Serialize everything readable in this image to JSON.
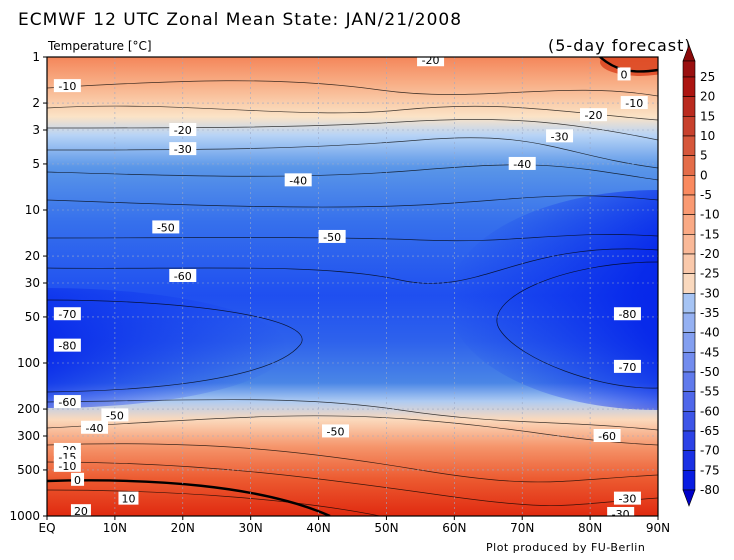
{
  "title": "ECMWF 12 UTC Zonal Mean State: JAN/21/2008",
  "forecast_note": "(5-day forecast)",
  "credit": "Plot produced by FU-Berlin",
  "chart_data": {
    "type": "contour",
    "variable_label": "Temperature [°C]",
    "x_axis": {
      "ticks": [
        0,
        10,
        20,
        30,
        40,
        50,
        60,
        70,
        80,
        90
      ],
      "tick_labels": [
        "EQ",
        "10N",
        "20N",
        "30N",
        "40N",
        "50N",
        "60N",
        "70N",
        "80N",
        "90N"
      ],
      "range": [
        0,
        90
      ]
    },
    "y_axis": {
      "scale": "log",
      "reversed": true,
      "range": [
        1,
        1000
      ],
      "ticks": [
        1,
        2,
        3,
        5,
        10,
        20,
        30,
        50,
        100,
        200,
        300,
        500,
        1000
      ],
      "tick_labels": [
        "1",
        "2",
        "3",
        "5",
        "10",
        "20",
        "30",
        "50",
        "100",
        "200",
        "300",
        "500",
        "1000"
      ]
    },
    "grid": true,
    "colorbar": {
      "levels": [
        25,
        20,
        15,
        10,
        5,
        0,
        -5,
        -10,
        -15,
        -20,
        -25,
        -30,
        -35,
        -40,
        -45,
        -50,
        -55,
        -60,
        -65,
        -70,
        -75,
        -80
      ],
      "labels": [
        "25",
        "20",
        "15",
        "10",
        "5",
        "0",
        "-5",
        "-10",
        "-15",
        "-20",
        "-25",
        "-30",
        "-35",
        "-40",
        "-45",
        "-50",
        "-55",
        "-60",
        "-65",
        "-70",
        "-75",
        "-80"
      ]
    },
    "contour_labels": [
      {
        "text": "-10",
        "lat": 3,
        "p": 1.55
      },
      {
        "text": "-20",
        "lat": 56.5,
        "p": 1.05
      },
      {
        "text": "0",
        "lat": 85,
        "p": 1.3
      },
      {
        "text": "-10",
        "lat": 86.5,
        "p": 2.0
      },
      {
        "text": "-20",
        "lat": 80.5,
        "p": 2.4
      },
      {
        "text": "-30",
        "lat": 75.5,
        "p": 3.3
      },
      {
        "text": "-20",
        "lat": 20,
        "p": 3.0
      },
      {
        "text": "-30",
        "lat": 20,
        "p": 4.0
      },
      {
        "text": "-40",
        "lat": 70,
        "p": 5.0
      },
      {
        "text": "-40",
        "lat": 37,
        "p": 6.4
      },
      {
        "text": "-50",
        "lat": 17.5,
        "p": 13
      },
      {
        "text": "-50",
        "lat": 42,
        "p": 15
      },
      {
        "text": "-60",
        "lat": 20,
        "p": 27
      },
      {
        "text": "-70",
        "lat": 3,
        "p": 48
      },
      {
        "text": "-80",
        "lat": 85.5,
        "p": 48
      },
      {
        "text": "-80",
        "lat": 3,
        "p": 77
      },
      {
        "text": "-70",
        "lat": 85.5,
        "p": 106
      },
      {
        "text": "-60",
        "lat": 3,
        "p": 180
      },
      {
        "text": "-50",
        "lat": 10,
        "p": 220
      },
      {
        "text": "-40",
        "lat": 7,
        "p": 265
      },
      {
        "text": "-50",
        "lat": 42.5,
        "p": 280
      },
      {
        "text": "-60",
        "lat": 82.5,
        "p": 300
      },
      {
        "text": "-20",
        "lat": 3,
        "p": 370
      },
      {
        "text": "-15",
        "lat": 3,
        "p": 410
      },
      {
        "text": "-10",
        "lat": 3,
        "p": 470
      },
      {
        "text": "0",
        "lat": 4.5,
        "p": 580
      },
      {
        "text": "10",
        "lat": 12,
        "p": 770
      },
      {
        "text": "20",
        "lat": 5,
        "p": 930
      },
      {
        "text": "-30",
        "lat": 85.5,
        "p": 770
      },
      {
        "text": "-30",
        "lat": 84.5,
        "p": 970
      }
    ]
  }
}
